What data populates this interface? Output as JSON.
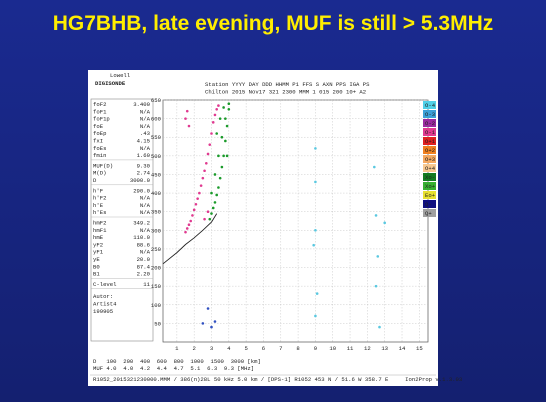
{
  "chart_data": {
    "type": "scatter",
    "title": "HG7BHB, late evening, MUF is still > 5.3MHz",
    "logo": [
      "Lowell",
      "DIGISONDE"
    ],
    "header_lines": [
      "Station YYYY DAY   DDD HHMM P1   FFS S AXN PPS IGA PS",
      "Chilton 2015 Nov17 321 2300 MMM   1 015 200 10+ A2"
    ],
    "parameter_groups": [
      [
        [
          "foF2",
          "3.400"
        ],
        [
          "foF1",
          "N/A"
        ],
        [
          "foF1p",
          "N/A"
        ],
        [
          "foE",
          "N/A"
        ],
        [
          "foEp",
          ".43"
        ],
        [
          "fxI",
          "4.15"
        ],
        [
          "foEs",
          "N/A"
        ],
        [
          "fmin",
          "1.60"
        ]
      ],
      [
        [
          "MUF(D)",
          "9.30"
        ],
        [
          "M(D)",
          "2.74"
        ],
        [
          "D",
          "3000.0"
        ]
      ],
      [
        [
          "h'F",
          "290.0"
        ],
        [
          "h'F2",
          "N/A"
        ],
        [
          "h'E",
          "N/A"
        ],
        [
          "h'Es",
          "N/A"
        ]
      ],
      [
        [
          "hmF2",
          "349.2"
        ],
        [
          "hmF1",
          "N/A"
        ],
        [
          "hmE",
          "110.0"
        ],
        [
          "yF2",
          "88.6"
        ],
        [
          "yF1",
          "N/A"
        ],
        [
          "yE",
          "20.0"
        ],
        [
          "B0",
          "87.4"
        ],
        [
          "B1",
          "2.20"
        ]
      ],
      [
        [
          "C-level",
          "11"
        ]
      ]
    ],
    "author_lines": [
      "Autor:",
      "Artist4",
      "199905"
    ],
    "legend": [
      {
        "label": "O-4",
        "color": "#4fd0e8"
      },
      {
        "label": "O-3",
        "color": "#3aa0d8"
      },
      {
        "label": "O-2",
        "color": "#9a2aa0"
      },
      {
        "label": "O-1",
        "color": "#e03a90"
      },
      {
        "label": "O+1",
        "color": "#e02020"
      },
      {
        "label": "O+2",
        "color": "#f08020"
      },
      {
        "label": "O+3",
        "color": "#f4a860"
      },
      {
        "label": "O+4",
        "color": "#f8c890"
      },
      {
        "label": "Xo-",
        "color": "#137a20"
      },
      {
        "label": "Xo+",
        "color": "#36b030"
      },
      {
        "label": "Eo+",
        "color": "#e8e030"
      },
      {
        "label": "Q-",
        "color": "#101080"
      },
      {
        "label": "Q+",
        "color": "#a0a0a0"
      }
    ],
    "xlim": [
      0.2,
      15.5
    ],
    "ylim": [
      0,
      650
    ],
    "xticks": [
      1,
      2,
      3,
      4,
      5,
      6,
      7,
      8,
      9,
      10,
      11,
      12,
      13,
      14,
      15
    ],
    "yticks": [
      50,
      100,
      150,
      200,
      250,
      300,
      350,
      400,
      450,
      500,
      550,
      600,
      650
    ],
    "grid": true,
    "series": [
      {
        "color": "#e03a90",
        "x": [
          1.5,
          1.6,
          1.7,
          1.8,
          1.9,
          2.0,
          2.1,
          2.2,
          2.3,
          2.4,
          2.5,
          2.6,
          2.7,
          2.8,
          2.9,
          3.0,
          3.1,
          3.2,
          3.3,
          3.4,
          1.5,
          1.6,
          1.7,
          2.6,
          2.8
        ],
        "values": [
          295,
          305,
          315,
          325,
          340,
          355,
          370,
          385,
          400,
          420,
          440,
          460,
          480,
          505,
          530,
          560,
          590,
          610,
          625,
          635,
          600,
          620,
          580,
          330,
          350
        ]
      },
      {
        "color": "#1a9a2a",
        "x": [
          2.9,
          3.0,
          3.1,
          3.2,
          3.3,
          3.4,
          3.5,
          3.6,
          3.7,
          3.8,
          3.9,
          4.0,
          3.0,
          3.2,
          3.4,
          3.6,
          3.8,
          4.0,
          3.3,
          3.5,
          3.7,
          3.9
        ],
        "values": [
          330,
          345,
          360,
          375,
          395,
          415,
          440,
          470,
          500,
          540,
          580,
          625,
          400,
          450,
          500,
          550,
          600,
          640,
          560,
          600,
          630,
          500
        ]
      },
      {
        "color": "#5ac8e0",
        "x": [
          9,
          9,
          9,
          9.1,
          9,
          8.9,
          12.5,
          12.6,
          12.5,
          12.7,
          13,
          12.4
        ],
        "values": [
          520,
          430,
          300,
          130,
          70,
          260,
          340,
          230,
          150,
          40,
          320,
          470
        ]
      },
      {
        "color": "#3050c0",
        "x": [
          2.5,
          3,
          3.2,
          2.8
        ],
        "values": [
          50,
          40,
          55,
          90
        ]
      }
    ],
    "curves": [
      {
        "color": "#222222",
        "x": [
          0.2,
          1,
          1.5,
          2,
          2.5,
          3,
          3.3
        ],
        "values": [
          210,
          240,
          262,
          280,
          300,
          322,
          345
        ]
      }
    ],
    "distance_row": "D   100  200  400  600  800  1000  1500  3000 [km]",
    "muf_row": "MUF 4.0  4.0  4.2  4.4  4.7  5.1  6.3  9.3 [MHz]",
    "footer": "R1052_2015321230000.MMM / 386(n)28L 50 kHz 5.0 km / [DPS-1] R1052 453 N / 51.6 W 358.7 E     Ion2Prop v.1.3.03"
  }
}
